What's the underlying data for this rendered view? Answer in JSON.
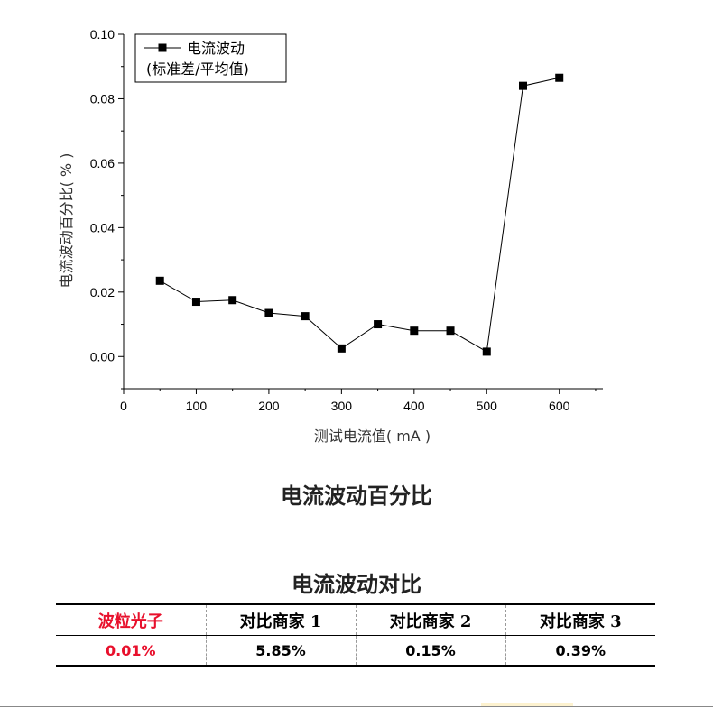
{
  "chart_data": {
    "type": "line",
    "x": [
      50,
      100,
      150,
      200,
      250,
      300,
      350,
      400,
      450,
      500,
      550,
      600
    ],
    "series": [
      {
        "name": "电流波动(标准差/平均值)",
        "legend_lines": [
          "电流波动",
          "(标准差/平均值)"
        ],
        "values": [
          0.0235,
          0.017,
          0.0175,
          0.0135,
          0.0125,
          0.0025,
          0.01,
          0.008,
          0.008,
          0.0015,
          0.084,
          0.0865
        ],
        "marker": "square",
        "color": "#000000"
      }
    ],
    "xlabel": "测试电流值( mA )",
    "ylabel": "电流波动百分比( % )",
    "xlim": [
      0,
      660
    ],
    "ylim": [
      -0.01,
      0.1
    ],
    "xticks": [
      0,
      100,
      200,
      300,
      400,
      500,
      600
    ],
    "xtick_labels": [
      "0",
      "100",
      "200",
      "300",
      "400",
      "500",
      "600"
    ],
    "yticks": [
      0,
      0.02,
      0.04,
      0.06,
      0.08,
      0.1
    ],
    "ytick_labels": [
      "0.00",
      "0.02",
      "0.04",
      "0.06",
      "0.08",
      "0.10"
    ],
    "grid": false,
    "legend_position": "top-left",
    "title": "电流波动百分比"
  },
  "table": {
    "title": "电流波动对比",
    "headers": [
      "波粒光子",
      "对比商家 1",
      "对比商家 2",
      "对比商家 3"
    ],
    "values": [
      "0.01%",
      "5.85%",
      "0.15%",
      "0.39%"
    ],
    "highlight_color": "#e8102c"
  }
}
